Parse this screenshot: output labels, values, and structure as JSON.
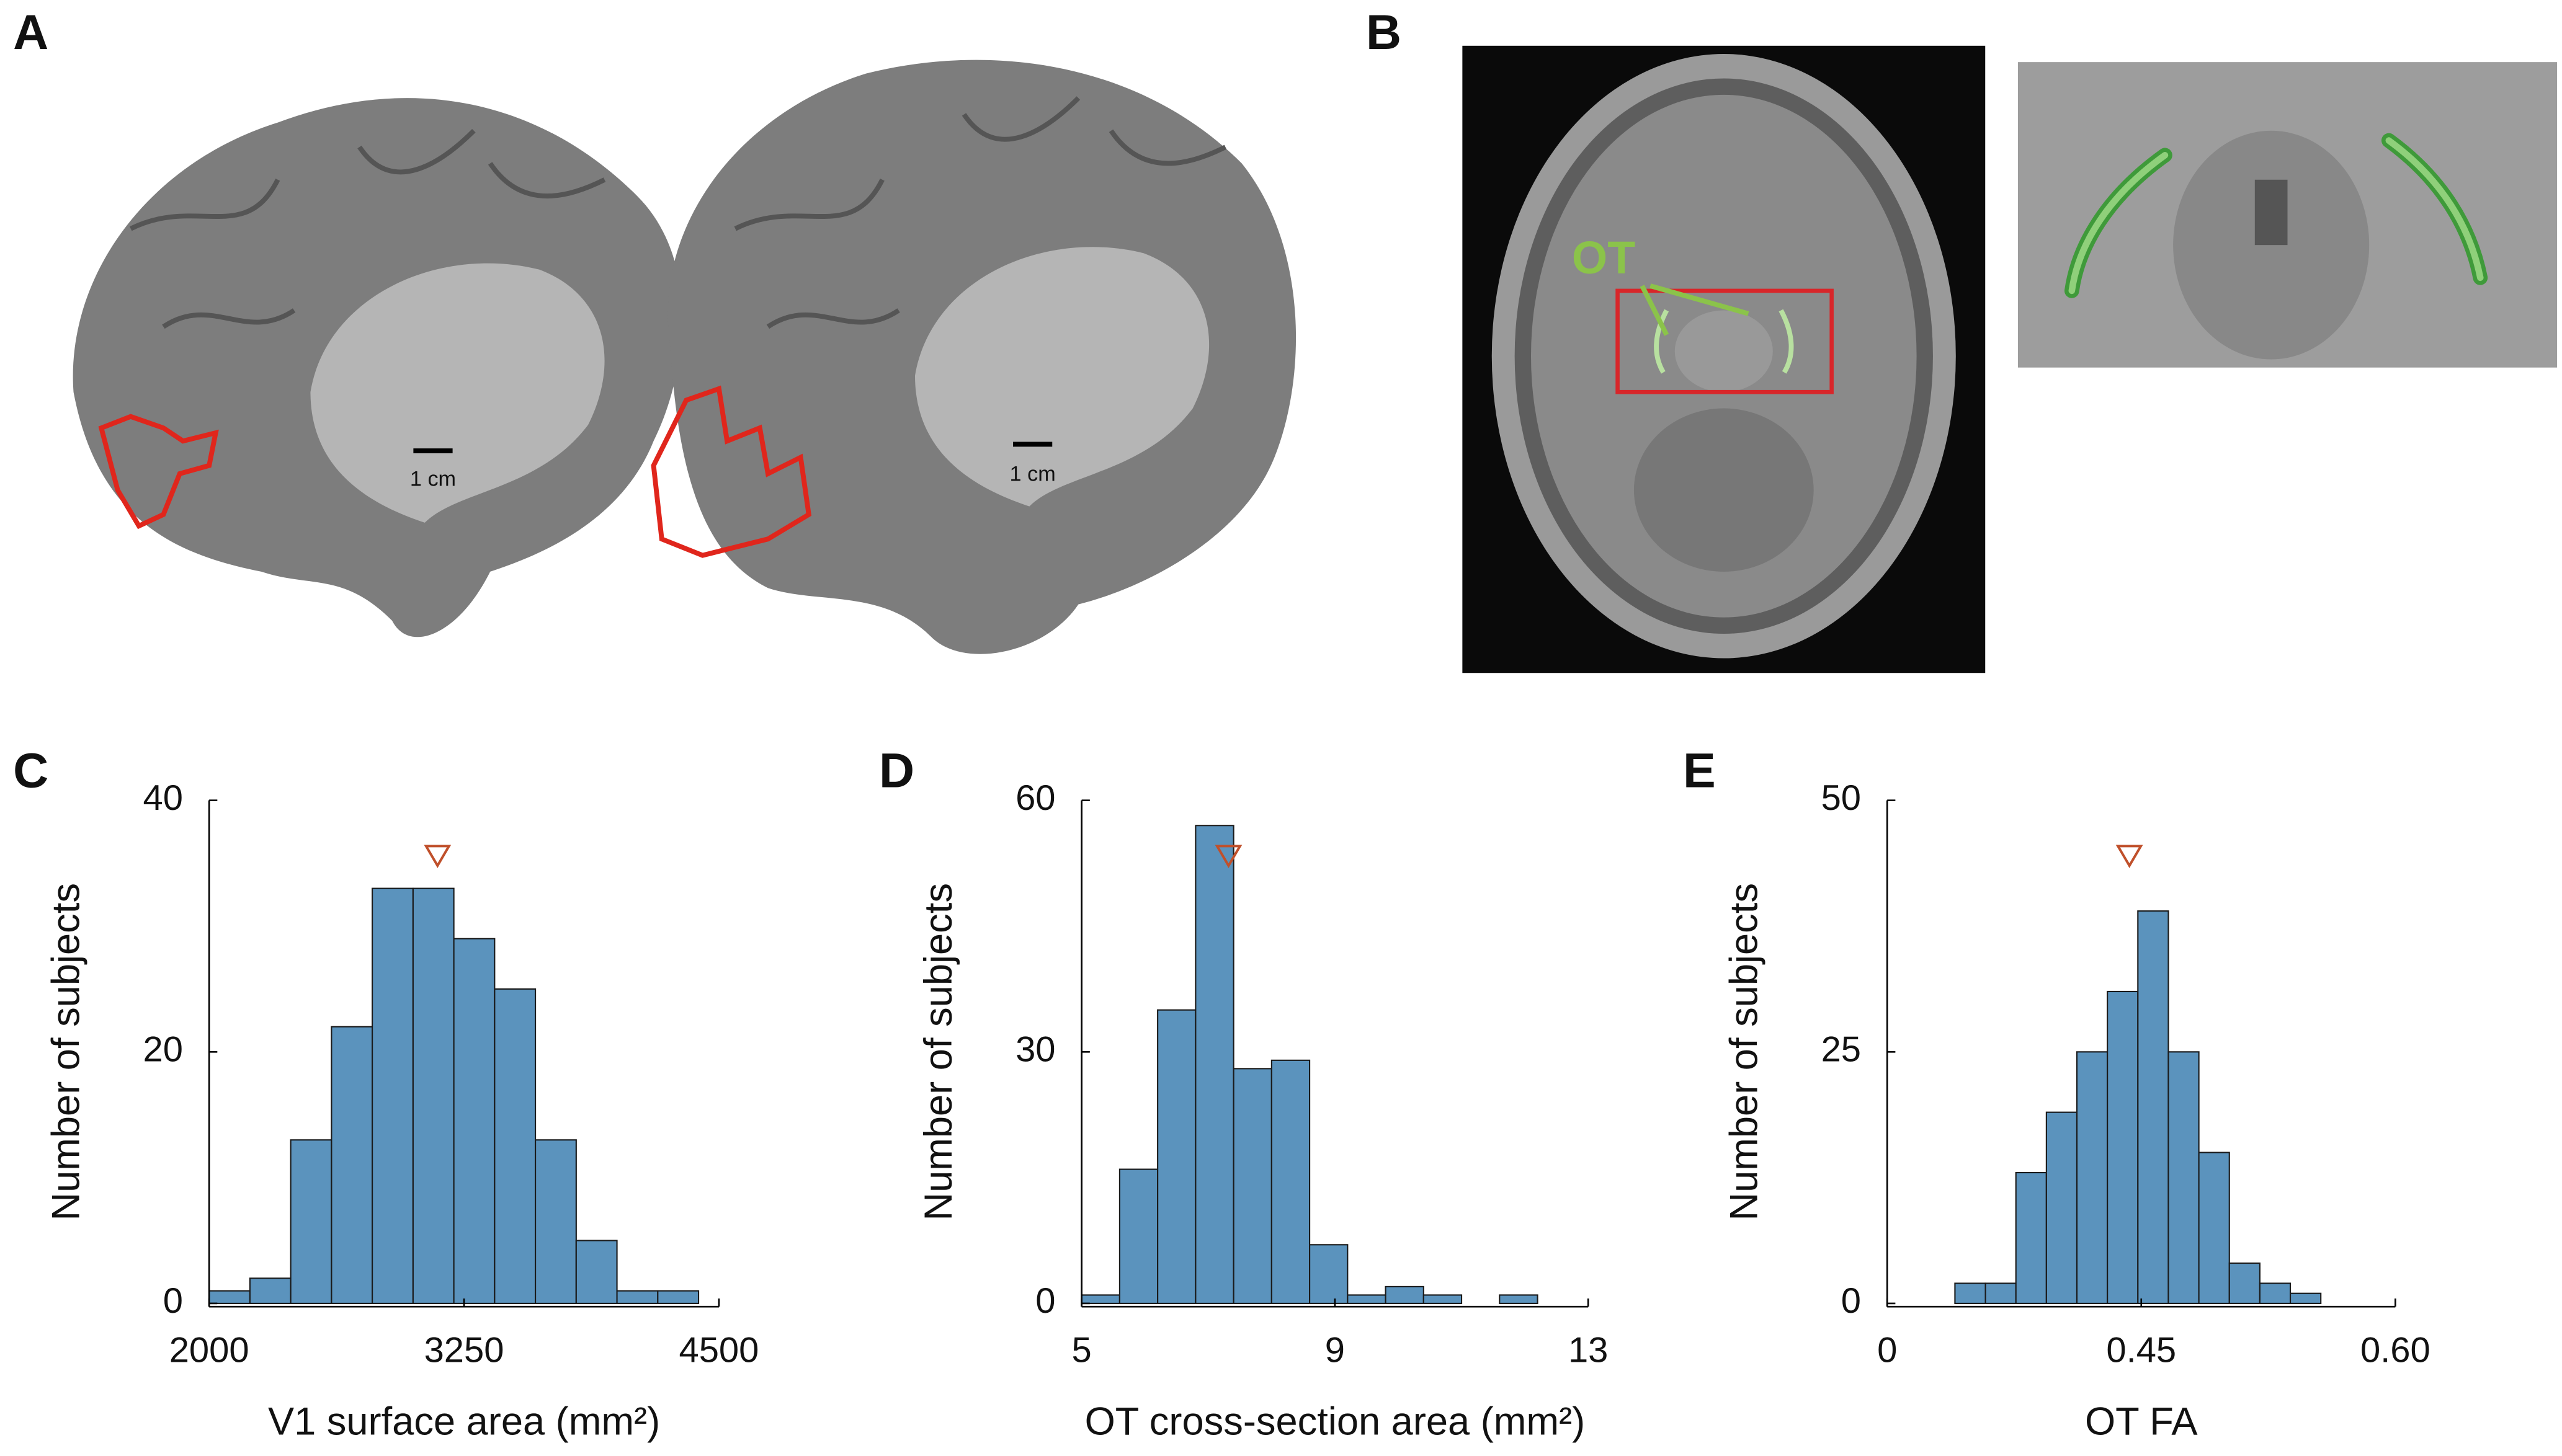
{
  "panel_labels": [
    "A",
    "B",
    "C",
    "D",
    "E"
  ],
  "panel_a": {
    "scale_labels": [
      "1 cm",
      "1 cm"
    ]
  },
  "panel_b": {
    "tract_label": "OT"
  },
  "chart_data": [
    {
      "type": "histogram",
      "ylabel": "Number of subjects",
      "xlabel": "V1 surface area (mm²)",
      "bins": [
        2000,
        2200,
        2400,
        2600,
        2800,
        3000,
        3200,
        3400,
        3600,
        3800,
        4000,
        4200,
        4400
      ],
      "values": [
        1,
        2,
        13,
        22,
        33,
        33,
        29,
        25,
        13,
        5,
        1,
        1
      ],
      "color": "#5b93bd",
      "marker": 3120,
      "marker_color": "#c0502b",
      "xlim": [
        2000,
        4500
      ],
      "ylim": [
        0,
        40
      ],
      "xticks": [
        2000,
        3250,
        4500
      ],
      "yticks": [
        0,
        20,
        40
      ]
    },
    {
      "type": "histogram",
      "ylabel": "Number of subjects",
      "xlabel": "OT cross-section area (mm²)",
      "bins": [
        5,
        5.6,
        6.2,
        6.8,
        7.4,
        8,
        8.6,
        9.2,
        9.8,
        10.4,
        11,
        11.6,
        12.2
      ],
      "values": [
        1,
        16,
        35,
        57,
        28,
        29,
        7,
        1,
        2,
        1,
        0,
        1
      ],
      "color": "#5b93bd",
      "marker": 7.32,
      "marker_color": "#c0502b",
      "xlim": [
        5,
        13
      ],
      "ylim": [
        0,
        60
      ],
      "xticks": [
        5,
        9,
        13
      ],
      "yticks": [
        0,
        30,
        60
      ]
    },
    {
      "type": "histogram",
      "ylabel": "Number of subjects",
      "xlabel": "OT FA",
      "bins": [
        0.34,
        0.358,
        0.376,
        0.394,
        0.412,
        0.43,
        0.448,
        0.466,
        0.484,
        0.502,
        0.52,
        0.538,
        0.556
      ],
      "values": [
        2,
        2,
        13,
        19,
        25,
        31,
        39,
        25,
        15,
        4,
        2,
        1
      ],
      "color": "#5b93bd",
      "marker": 0.443,
      "marker_color": "#c0502b",
      "xlim": [
        0.3,
        0.6
      ],
      "ylim": [
        0,
        50
      ],
      "xticks": [
        {
          "value": 0.3,
          "label": "0"
        },
        0.45,
        {
          "value": 0.6,
          "label": "0.60"
        }
      ],
      "yticks": [
        0,
        25,
        50
      ]
    }
  ]
}
